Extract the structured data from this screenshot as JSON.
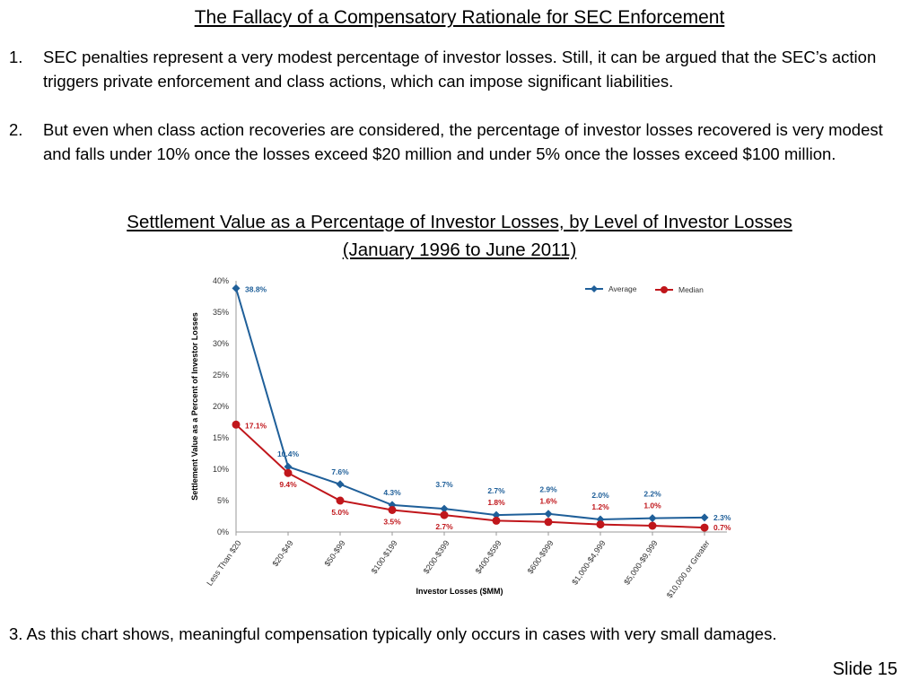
{
  "slide": {
    "title": "The Fallacy of a Compensatory Rationale for SEC Enforcement",
    "points": [
      {
        "number": "1.",
        "text": "SEC penalties represent a very modest percentage of investor losses.  Still, it can be argued that the SEC’s action triggers private enforcement and class actions, which can impose significant liabilities."
      },
      {
        "number": "2.",
        "text": "But even when class action recoveries are considered, the percentage of investor losses recovered is very modest and falls under 10% once the losses exceed $20 million and under 5% once the losses exceed $100 million."
      }
    ],
    "chart_heading_line1": "Settlement Value as a Percentage of Investor Losses, by Level of Investor Losses",
    "chart_heading_line2": "(January 1996 to June 2011)",
    "footer_point": "3.  As this chart shows, meaningful compensation typically only occurs in cases with very small damages.",
    "slide_number": "Slide 15"
  },
  "chart_data": {
    "type": "line",
    "categories": [
      "Less Than $20",
      "$20-$49",
      "$50-$99",
      "$100-$199",
      "$200-$399",
      "$400-$599",
      "$600-$999",
      "$1,000-$4,999",
      "$5,000-$9,999",
      "$10,000 or Greater"
    ],
    "series": [
      {
        "name": "Average",
        "values": [
          38.8,
          10.4,
          7.6,
          4.3,
          3.7,
          2.7,
          2.9,
          2.0,
          2.2,
          2.3
        ],
        "labels": [
          "38.8%",
          "10.4%",
          "7.6%",
          "4.3%",
          "3.7%",
          "2.7%",
          "2.9%",
          "2.0%",
          "2.2%",
          "2.3%"
        ],
        "color": "#1f5f99",
        "marker": "diamond"
      },
      {
        "name": "Median",
        "values": [
          17.1,
          9.4,
          5.0,
          3.5,
          2.7,
          1.8,
          1.6,
          1.2,
          1.0,
          0.7
        ],
        "labels": [
          "17.1%",
          "9.4%",
          "5.0%",
          "3.5%",
          "2.7%",
          "1.8%",
          "1.6%",
          "1.2%",
          "1.0%",
          "0.7%"
        ],
        "color": "#c0161b",
        "marker": "circle"
      }
    ],
    "yticks": [
      0,
      5,
      10,
      15,
      20,
      25,
      30,
      35,
      40
    ],
    "ytick_labels": [
      "0%",
      "5%",
      "10%",
      "15%",
      "20%",
      "25%",
      "30%",
      "35%",
      "40%"
    ],
    "ylim": [
      0,
      40
    ],
    "xlabel": "Investor Losses ($MM)",
    "ylabel": "Settlement Value as a Percent of Investor Losses",
    "legend_position": "top-right",
    "grid": false
  }
}
